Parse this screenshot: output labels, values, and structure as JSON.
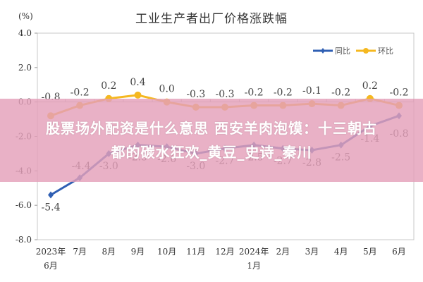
{
  "chart_data": {
    "type": "line",
    "title": "工业生产者出厂价格涨跌幅",
    "ylabel": "(%)",
    "xlabel": "",
    "ylim": [
      -8.0,
      4.0
    ],
    "yticks": [
      "4.0",
      "2.0",
      "0.0",
      "-2.0",
      "-4.0",
      "-6.0",
      "-8.0"
    ],
    "categories": [
      "2023年6月",
      "7月",
      "8月",
      "9月",
      "10月",
      "11月",
      "12月",
      "2024年1月",
      "2月",
      "3月",
      "4月",
      "5月",
      "6月"
    ],
    "category_lines": [
      [
        "2023年",
        "6月"
      ],
      [
        "7月"
      ],
      [
        "8月"
      ],
      [
        "9月"
      ],
      [
        "10月"
      ],
      [
        "11月"
      ],
      [
        "12月"
      ],
      [
        "2024年",
        "1月"
      ],
      [
        "2月"
      ],
      [
        "3月"
      ],
      [
        "4月"
      ],
      [
        "5月"
      ],
      [
        "6月"
      ]
    ],
    "series": [
      {
        "name": "同比",
        "color": "#2f5fb3",
        "marker": "diamond",
        "values": [
          -5.4,
          -4.4,
          -3.0,
          -2.5,
          -2.6,
          -3.0,
          -2.7,
          -2.5,
          -2.7,
          -2.8,
          -2.5,
          -1.4,
          -0.8
        ]
      },
      {
        "name": "环比",
        "color": "#f5b820",
        "marker": "circle",
        "values": [
          -0.8,
          -0.2,
          0.2,
          0.4,
          0.0,
          -0.3,
          -0.3,
          -0.2,
          -0.2,
          -0.1,
          -0.2,
          0.2,
          -0.2
        ]
      }
    ],
    "legend_position": "top-right",
    "grid": false
  },
  "overlay": {
    "line1": "股票场外配资是什么意思 西安羊肉泡馍：十三朝古",
    "line2": "都的碳水狂欢_黄豆_史诗_秦川"
  }
}
